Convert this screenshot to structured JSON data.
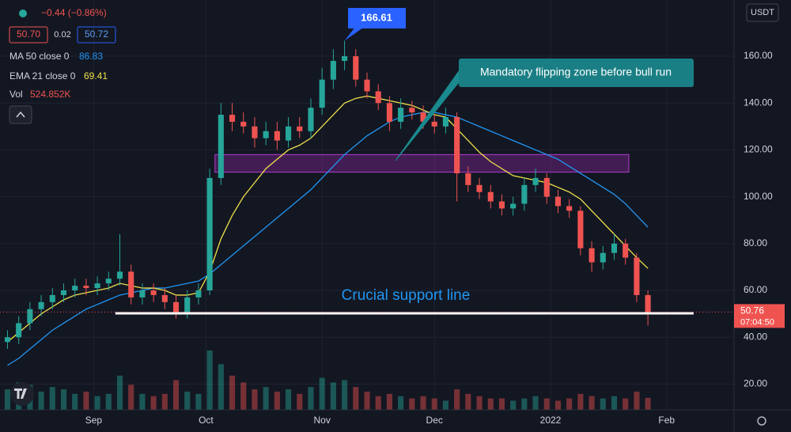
{
  "chart_data": {
    "type": "candlestick",
    "quote_currency": "USDT",
    "change_label": "−0.44 (−0.86%)",
    "ohlc_labels": [
      "50.70",
      "0.02",
      "50.72"
    ],
    "x": [
      0,
      3,
      6,
      9,
      12,
      15,
      18,
      21,
      24,
      27,
      30,
      33,
      36,
      39,
      42,
      45,
      48,
      51,
      54,
      57,
      60,
      63,
      66,
      69,
      72,
      75,
      78,
      81,
      84,
      87,
      90,
      93,
      96,
      99,
      102,
      105,
      108,
      111,
      114,
      117,
      120,
      123,
      126,
      129,
      132,
      135,
      138,
      141,
      144,
      147,
      150,
      153,
      156,
      159,
      162,
      165,
      168,
      171
    ],
    "open": [
      38,
      40,
      46,
      52,
      55,
      58,
      60,
      62,
      61,
      63,
      65,
      68,
      57,
      60,
      58,
      55,
      50,
      57,
      60,
      108,
      135,
      132,
      130,
      125,
      128,
      124,
      130,
      128,
      138,
      150,
      158,
      160,
      150,
      145,
      140,
      132,
      138,
      136,
      132,
      130,
      134,
      110,
      105,
      102,
      98,
      95,
      97,
      105,
      108,
      100,
      96,
      94,
      78,
      72,
      76,
      80,
      74,
      58
    ],
    "high": [
      43,
      49,
      55,
      58,
      61,
      63,
      65,
      65,
      66,
      68,
      84,
      71,
      63,
      63,
      61,
      58,
      60,
      63,
      112,
      140,
      140,
      136,
      134,
      132,
      132,
      134,
      134,
      142,
      155,
      163,
      166.61,
      163,
      153,
      148,
      143,
      142,
      141,
      139,
      135,
      138,
      136,
      113,
      108,
      105,
      101,
      100,
      108,
      112,
      110,
      103,
      99,
      96,
      81,
      79,
      84,
      82,
      76,
      60
    ],
    "low": [
      35,
      37,
      43,
      49,
      52,
      55,
      57,
      58,
      58,
      60,
      62,
      54,
      54,
      55,
      52,
      48,
      48,
      54,
      58,
      105,
      128,
      127,
      121,
      122,
      120,
      121,
      125,
      125,
      135,
      146,
      154,
      147,
      142,
      137,
      128,
      129,
      133,
      129,
      127,
      127,
      98,
      102,
      99,
      95,
      92,
      92,
      94,
      102,
      97,
      93,
      91,
      75,
      68,
      69,
      73,
      71,
      55,
      45
    ],
    "close": [
      40,
      46,
      52,
      55,
      58,
      60,
      62,
      61,
      63,
      65,
      68,
      57,
      60,
      58,
      55,
      50,
      57,
      60,
      108,
      135,
      132,
      130,
      125,
      128,
      124,
      130,
      128,
      138,
      150,
      158,
      160,
      150,
      145,
      140,
      132,
      138,
      136,
      132,
      130,
      134,
      110,
      105,
      102,
      98,
      95,
      97,
      105,
      108,
      100,
      96,
      94,
      78,
      72,
      76,
      80,
      74,
      58,
      50.7
    ],
    "volume_name": "Vol",
    "volume_label": "524.852K",
    "volume": [
      900,
      1200,
      1100,
      800,
      1000,
      900,
      700,
      800,
      600,
      700,
      1500,
      1100,
      700,
      600,
      700,
      1300,
      800,
      700,
      2600,
      2000,
      1500,
      1200,
      900,
      1000,
      800,
      900,
      700,
      1000,
      1400,
      1200,
      1300,
      1000,
      800,
      600,
      700,
      600,
      500,
      600,
      500,
      400,
      900,
      700,
      600,
      500,
      500,
      400,
      500,
      600,
      500,
      400,
      500,
      700,
      600,
      500,
      600,
      500,
      800,
      524.852
    ],
    "series": [
      {
        "name": "MA 50 close 0",
        "color": "#2196f3",
        "last_label": "86.83",
        "values": [
          28,
          31,
          35,
          39,
          43,
          46,
          49,
          52,
          54,
          56,
          58,
          59,
          60,
          61,
          61,
          62,
          63,
          64,
          67,
          71,
          75,
          79,
          83,
          87,
          91,
          95,
          99,
          103,
          108,
          113,
          118,
          122,
          126,
          129,
          132,
          134,
          135,
          136,
          136,
          135,
          134,
          132,
          130,
          128,
          126,
          124,
          122,
          120,
          118,
          116,
          113,
          110,
          107,
          104,
          101,
          97,
          92,
          87
        ]
      },
      {
        "name": "EMA 21 close 0",
        "color": "#f0e04a",
        "last_label": "69.41",
        "values": [
          38,
          42,
          46,
          50,
          53,
          56,
          58,
          59,
          60,
          61,
          63,
          62,
          61,
          61,
          60,
          58,
          58,
          59,
          68,
          82,
          92,
          100,
          106,
          112,
          116,
          120,
          122,
          125,
          130,
          135,
          140,
          142,
          143,
          142,
          141,
          140,
          139,
          137,
          135,
          134,
          129,
          124,
          119,
          115,
          112,
          109,
          108,
          107,
          106,
          104,
          102,
          99,
          94,
          89,
          84,
          79,
          74,
          69.41
        ]
      }
    ],
    "up_color": "#26a69a",
    "down_color": "#ef5350",
    "xlim": [
      -2,
      194
    ],
    "ylim": [
      9,
      184
    ],
    "xticks": [
      {
        "value": 23,
        "label": "Sep"
      },
      {
        "value": 53,
        "label": "Oct"
      },
      {
        "value": 84,
        "label": "Nov"
      },
      {
        "value": 114,
        "label": "Dec"
      },
      {
        "value": 145,
        "label": "2022"
      },
      {
        "value": 176,
        "label": "Feb"
      }
    ],
    "yticks": [
      {
        "value": 20,
        "label": "20.00"
      },
      {
        "value": 40,
        "label": "40.00"
      },
      {
        "value": 60,
        "label": "60.00"
      },
      {
        "value": 80,
        "label": "80.00"
      },
      {
        "value": 100,
        "label": "100.00"
      },
      {
        "value": 120,
        "label": "120.00"
      },
      {
        "value": 140,
        "label": "140.00"
      },
      {
        "value": 160,
        "label": "160.00"
      }
    ],
    "grid": true,
    "last_price": {
      "value": 50.76,
      "label": "50.76"
    },
    "countdown": "07:04:50",
    "zone": {
      "low": 110.5,
      "high": 118,
      "x0": 55.4,
      "x1": 165.9
    },
    "support_line": {
      "label": "Crucial support line",
      "value": 50.2,
      "x0": 28.8,
      "x1": 183.2
    },
    "high_callout": "166.61",
    "zone_callout": "Mandatory flipping zone before bull run"
  }
}
